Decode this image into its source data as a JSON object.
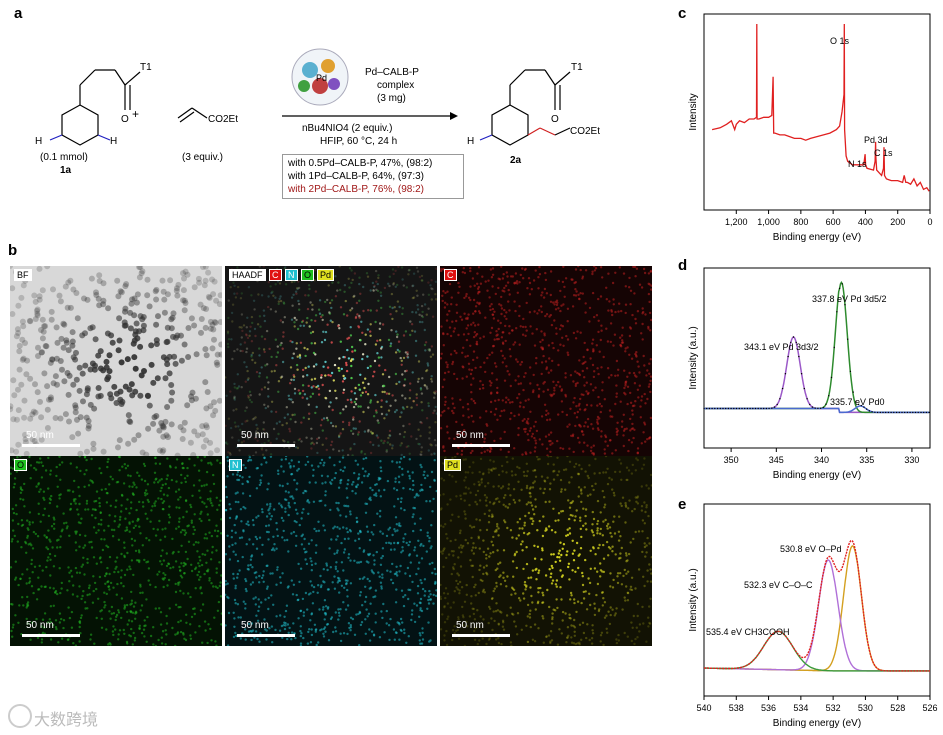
{
  "panels": {
    "a": "a",
    "b": "b",
    "c": "c",
    "d": "d",
    "e": "e"
  },
  "scheme": {
    "sm_T": "T1",
    "sm_amount": "(0.1 mmol)",
    "sm_id": "1a",
    "plus": "+",
    "acrylate_group": "CO2Et",
    "acrylate_amount": "(3 equiv.)",
    "catalyst": "Pd–CALB-P",
    "catalyst_2": "complex",
    "catalyst_amount": "(3 mg)",
    "pd_label": "Pd",
    "oxidant": "nBu4NIO4 (2 equiv.)",
    "conditions": "HFIP, 60 °C, 24 h",
    "product_T": "T1",
    "product_group": "CO2Et",
    "product_id": "2a",
    "h_left": "H",
    "h_right": "H",
    "o_sm": "O",
    "o_prod": "O",
    "results": [
      "with 0.5Pd–CALB-P, 47%, (98:2)",
      "with 1Pd–CALB-P, 64%, (97:3)",
      "with 2Pd–CALB-P, 76%, (98:2)"
    ],
    "result_colors": [
      "#000000",
      "#000000",
      "#a01818"
    ]
  },
  "maps": [
    {
      "tags": [
        "BF"
      ],
      "scale": "50 nm"
    },
    {
      "tags": [
        "HAADF",
        "C",
        "N",
        "O",
        "Pd"
      ],
      "scale": "50 nm"
    },
    {
      "tags": [
        "C"
      ],
      "scale": "50 nm"
    },
    {
      "tags": [
        "O"
      ],
      "scale": "50 nm"
    },
    {
      "tags": [
        "N"
      ],
      "scale": "50 nm"
    },
    {
      "tags": [
        "Pd"
      ],
      "scale": "50 nm"
    }
  ],
  "map_colors": {
    "C": "#e01010",
    "N": "#20c0d0",
    "O": "#20c020",
    "Pd": "#e0e020",
    "bf": "#dcdcdc",
    "haadf": "#101010"
  },
  "watermark": "大数跨境",
  "chart_data": [
    {
      "type": "line",
      "panel": "c",
      "xlabel": "Binding energy (eV)",
      "ylabel": "Intensity",
      "xlim": [
        1400,
        0
      ],
      "xticks": [
        "1,200",
        "1,000",
        "800",
        "600",
        "400",
        "200",
        "0"
      ],
      "xtick_values": [
        1200,
        1000,
        800,
        600,
        400,
        200,
        0
      ],
      "annotations": [
        {
          "text": "O 1s",
          "x": 531
        },
        {
          "text": "Pd 3d",
          "x": 336
        },
        {
          "text": "N 1s",
          "x": 400
        },
        {
          "text": "C 1s",
          "x": 285
        }
      ],
      "series": [
        {
          "color": "#e02020",
          "x": [
            1350,
            1300,
            1260,
            1230,
            1210,
            1200,
            1180,
            1150,
            1120,
            1090,
            1075,
            1073,
            1071,
            1060,
            1030,
            1000,
            980,
            972,
            968,
            960,
            930,
            900,
            870,
            840,
            800,
            770,
            740,
            700,
            660,
            620,
            580,
            560,
            545,
            533,
            531,
            529,
            520,
            510,
            480,
            460,
            410,
            402,
            399,
            390,
            350,
            340,
            337,
            335,
            330,
            300,
            288,
            285,
            282,
            270,
            240,
            200,
            170,
            160,
            150,
            140,
            120,
            100,
            80,
            60,
            40,
            20,
            5
          ],
          "y": [
            0.4,
            0.41,
            0.43,
            0.45,
            0.4,
            0.43,
            0.45,
            0.44,
            0.46,
            0.46,
            0.47,
            1.0,
            0.46,
            0.46,
            0.47,
            0.47,
            0.48,
            0.7,
            0.38,
            0.38,
            0.37,
            0.37,
            0.36,
            0.35,
            0.35,
            0.34,
            0.35,
            0.36,
            0.37,
            0.38,
            0.4,
            0.42,
            0.5,
            0.6,
            1.0,
            0.4,
            0.25,
            0.22,
            0.2,
            0.2,
            0.2,
            0.26,
            0.2,
            0.18,
            0.17,
            0.22,
            0.33,
            0.24,
            0.17,
            0.14,
            0.18,
            0.3,
            0.14,
            0.12,
            0.11,
            0.11,
            0.1,
            0.14,
            0.1,
            0.1,
            0.09,
            0.12,
            0.08,
            0.1,
            0.06,
            0.07,
            0.05
          ]
        }
      ]
    },
    {
      "type": "line",
      "panel": "d",
      "xlabel": "Binding energy (eV)",
      "ylabel": "Intensity (a.u.)",
      "xlim": [
        353,
        328
      ],
      "xticks": [
        "350",
        "345",
        "340",
        "335",
        "330"
      ],
      "xtick_values": [
        350,
        345,
        340,
        335,
        330
      ],
      "annotations": [
        {
          "text": "337.8 eV Pd 3d5/2",
          "x": 337.8
        },
        {
          "text": "343.1 eV Pd 3d3/2",
          "x": 343.1
        },
        {
          "text": "335.7 eV Pd0",
          "x": 335.7
        }
      ],
      "series": [
        {
          "name": "",
          "color": "#9b59c8",
          "peak": 343.1,
          "height": 0.55,
          "width": 0.75
        },
        {
          "name": "",
          "color": "#2e8b2e",
          "peak": 337.8,
          "height": 1.0,
          "width": 0.65
        },
        {
          "name": "",
          "color": "#4a6ad0",
          "peak": 335.7,
          "height": 0.05,
          "width": 0.6
        }
      ]
    },
    {
      "type": "line",
      "panel": "e",
      "xlabel": "Binding energy (eV)",
      "ylabel": "Intensity (a.u.)",
      "xlim": [
        540,
        526
      ],
      "xticks": [
        "540",
        "538",
        "536",
        "534",
        "532",
        "530",
        "528",
        "526"
      ],
      "xtick_values": [
        540,
        538,
        536,
        534,
        532,
        530,
        528,
        526
      ],
      "annotations": [
        {
          "text": "530.8 eV O–Pd",
          "x": 530.8
        },
        {
          "text": "532.3 eV C–O–C",
          "x": 532.3
        },
        {
          "text": "535.4 eV CH3COOH",
          "x": 535.4
        }
      ],
      "series": [
        {
          "name": "",
          "color": "#d4a020",
          "peak": 530.8,
          "height": 0.88,
          "width": 0.55
        },
        {
          "name": "",
          "color": "#b070d8",
          "peak": 532.3,
          "height": 0.78,
          "width": 0.6
        },
        {
          "name": "",
          "color": "#3a9a3a",
          "peak": 535.4,
          "height": 0.27,
          "width": 0.9
        }
      ]
    }
  ]
}
